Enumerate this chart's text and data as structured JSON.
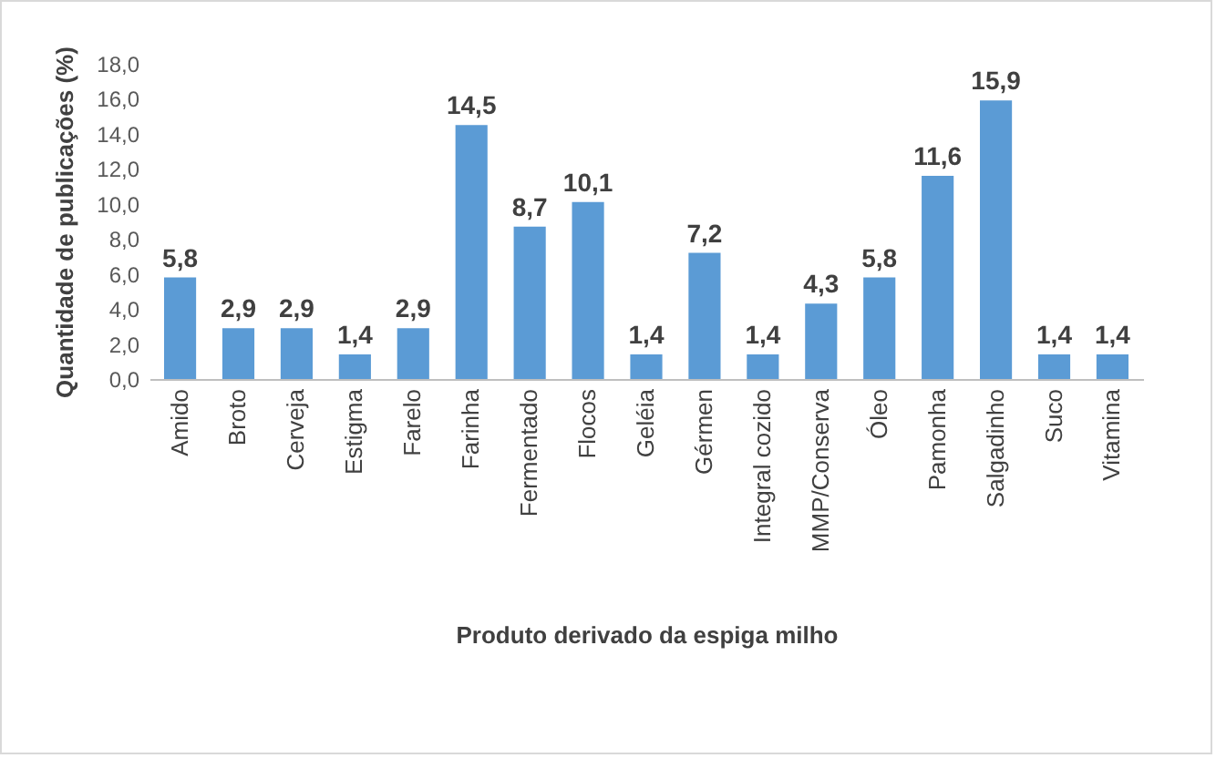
{
  "chart_data": {
    "type": "bar",
    "xlabel": "Produto derivado da espiga milho",
    "ylabel": "Quantidade de publicações (%)",
    "categories": [
      "Amido",
      "Broto",
      "Cerveja",
      "Estigma",
      "Farelo",
      "Farinha",
      "Fermentado",
      "Flocos",
      "Geléia",
      "Gérmen",
      "Integral cozido",
      "MMP/Conserva",
      "Óleo",
      "Pamonha",
      "Salgadinho",
      "Suco",
      "Vitamina"
    ],
    "values": [
      5.8,
      2.9,
      2.9,
      1.4,
      2.9,
      14.5,
      8.7,
      10.1,
      1.4,
      7.2,
      1.4,
      4.3,
      5.8,
      11.6,
      15.9,
      1.4,
      1.4
    ],
    "value_labels": [
      "5,8",
      "2,9",
      "2,9",
      "1,4",
      "2,9",
      "14,5",
      "8,7",
      "10,1",
      "1,4",
      "7,2",
      "1,4",
      "4,3",
      "5,8",
      "11,6",
      "15,9",
      "1,4",
      "1,4"
    ],
    "color": "#5b9bd5",
    "ylim": [
      0,
      18
    ],
    "yticks": [
      {
        "value": 0,
        "label": "0,0"
      },
      {
        "value": 2,
        "label": "2,0"
      },
      {
        "value": 4,
        "label": "4,0"
      },
      {
        "value": 6,
        "label": "6,0"
      },
      {
        "value": 8,
        "label": "8,0"
      },
      {
        "value": 10,
        "label": "10,0"
      },
      {
        "value": 12,
        "label": "12,0"
      },
      {
        "value": 14,
        "label": "14,0"
      },
      {
        "value": 16,
        "label": "16,0"
      },
      {
        "value": 18,
        "label": "18,0"
      }
    ],
    "grid": false
  }
}
